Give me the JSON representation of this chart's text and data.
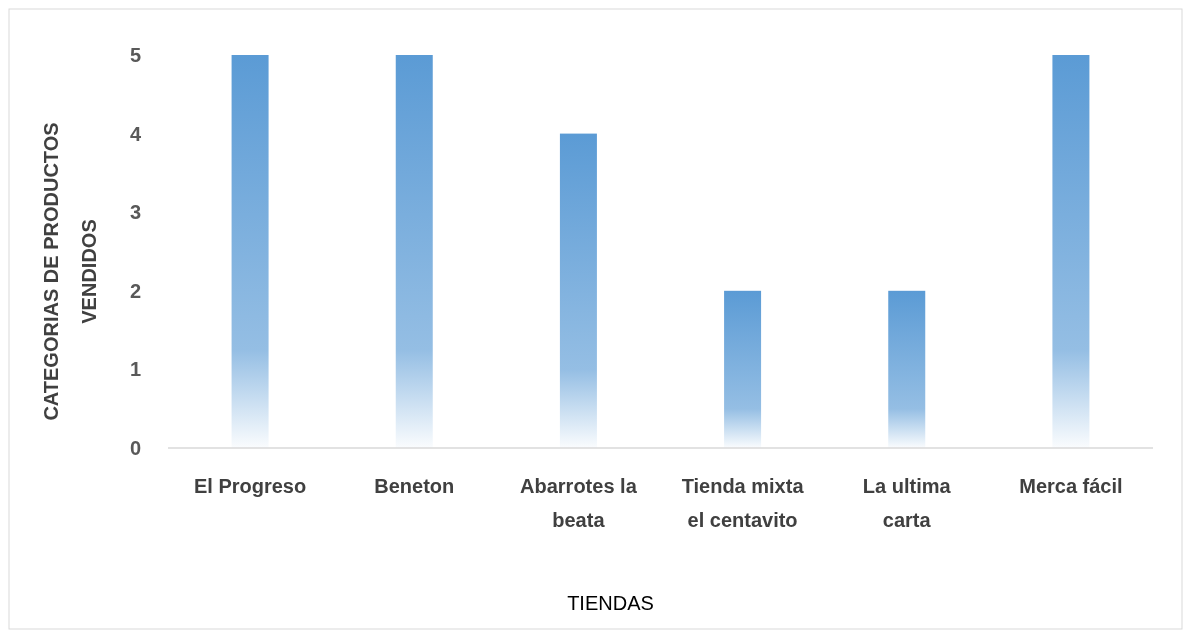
{
  "chart_data": {
    "type": "bar",
    "categories": [
      "El Progreso",
      "Beneton",
      "Abarrotes la beata",
      "Tienda mixta el centavito",
      "La ultima carta",
      "Merca fácil"
    ],
    "values": [
      5,
      5,
      4,
      2,
      2,
      5
    ],
    "color": "#5b9bd5",
    "ylim": [
      0,
      5
    ],
    "yticks": [
      0,
      1,
      2,
      3,
      4,
      5
    ],
    "grid": false,
    "xlabel": "TIENDAS",
    "ylabel": "CATEGORIAS DE PRODUCTOS VENDIDOS"
  }
}
